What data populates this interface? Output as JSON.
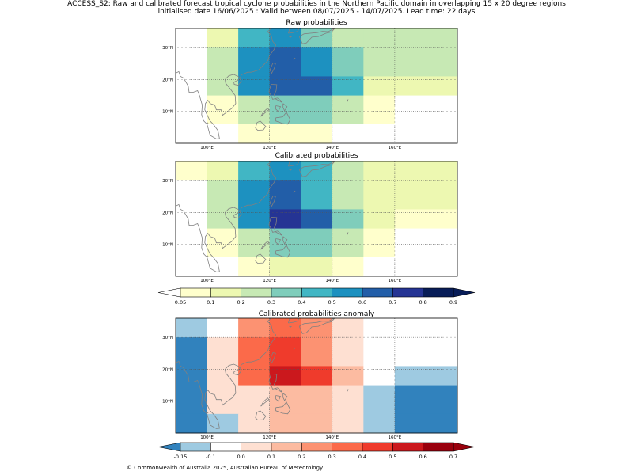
{
  "title_line1": "ACCESS_S2: Raw and calibrated forecast tropical cyclone probabilities in the Northern Pacific domain in overlapping 15 x 20 degree regions",
  "title_line2": "initialised date 16/06/2025 :  Valid between 08/07/2025 - 14/07/2025. Lead time: 22 days",
  "copyright": "© Commonwealth of Australia 2025, Australian Bureau of Meteorology",
  "lon_labels": [
    "100°E",
    "120°E",
    "140°E",
    "160°E"
  ],
  "lat_labels": [
    "30°N",
    "20°N",
    "10°N"
  ],
  "colors": {
    "prob": [
      "#ffffff",
      "#ffffcc",
      "#edf8b1",
      "#c7e9b4",
      "#7fcdbb",
      "#41b6c4",
      "#1d91c0",
      "#225ea8",
      "#253494",
      "#081d58"
    ],
    "anom": [
      "#3182bd",
      "#9ecae1",
      "#ffffff",
      "#fee0d2",
      "#fcbba1",
      "#fc9272",
      "#fb6a4a",
      "#ef3b2c",
      "#cb181d",
      "#99000d"
    ]
  },
  "panels": [
    {
      "title": "Raw probabilities",
      "grid_cols": [
        90,
        100,
        110,
        120,
        130,
        140,
        150,
        160,
        180
      ],
      "grid_rows": [
        36,
        30,
        21,
        15,
        6,
        0
      ],
      "cells": [
        [
          0,
          2,
          5,
          6,
          4,
          3,
          3,
          3
        ],
        [
          0,
          3,
          6,
          7,
          6,
          4,
          3,
          3
        ],
        [
          0,
          3,
          6,
          7,
          7,
          5,
          2,
          2
        ],
        [
          0,
          1,
          3,
          4,
          4,
          3,
          1,
          0
        ],
        [
          0,
          0,
          1,
          1,
          1,
          0,
          0,
          0
        ]
      ]
    },
    {
      "title": "Calibrated probabilities",
      "grid_cols": [
        90,
        100,
        110,
        120,
        130,
        140,
        150,
        160,
        180
      ],
      "grid_rows": [
        36,
        30,
        21,
        15,
        6,
        0
      ],
      "cells": [
        [
          1,
          2,
          5,
          6,
          5,
          3,
          2,
          2
        ],
        [
          0,
          3,
          6,
          7,
          5,
          3,
          2,
          2
        ],
        [
          0,
          3,
          6,
          8,
          7,
          4,
          2,
          1
        ],
        [
          0,
          1,
          3,
          4,
          4,
          3,
          1,
          0
        ],
        [
          0,
          0,
          1,
          2,
          2,
          1,
          0,
          0
        ]
      ]
    },
    {
      "title": "Calibrated probabilities anomaly",
      "grid_cols": [
        90,
        100,
        110,
        120,
        130,
        140,
        150,
        160,
        180
      ],
      "grid_rows": [
        36,
        30,
        21,
        15,
        6,
        0
      ],
      "cells": [
        [
          1,
          2,
          5,
          6,
          5,
          3,
          2,
          2
        ],
        [
          0,
          3,
          6,
          7,
          5,
          3,
          2,
          2
        ],
        [
          0,
          3,
          6,
          8,
          7,
          4,
          2,
          1
        ],
        [
          0,
          3,
          3,
          4,
          4,
          3,
          1,
          0
        ],
        [
          0,
          1,
          3,
          4,
          4,
          3,
          1,
          0
        ]
      ]
    }
  ],
  "prob_colorbar": {
    "ticks": [
      "0.05",
      "0.1",
      "0.2",
      "0.3",
      "0.4",
      "0.5",
      "0.6",
      "0.7",
      "0.8",
      "0.9"
    ]
  },
  "anom_colorbar": {
    "ticks": [
      "-0.15",
      "-0.1",
      "0.0",
      "0.1",
      "0.2",
      "0.3",
      "0.4",
      "0.5",
      "0.6",
      "0.7"
    ]
  }
}
